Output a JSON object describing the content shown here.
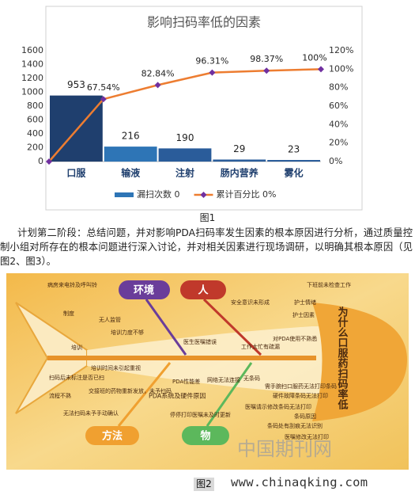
{
  "chart_data": {
    "type": "bar",
    "title": "影响扫码率低的因素",
    "categories": [
      "口服",
      "输液",
      "注射",
      "肠内营养",
      "雾化"
    ],
    "series": [
      {
        "name": "漏扫次数 0",
        "type": "bar",
        "color": "#2e75b6",
        "colors": [
          "#1f3f6e",
          "#2e75b6",
          "#2a5c9a",
          "#2a5c9a",
          "#2a5c9a"
        ],
        "values": [
          953,
          216,
          190,
          29,
          23
        ]
      },
      {
        "name": "累计百分比 0%",
        "type": "line",
        "axis": "y2",
        "color": "#ed7d31",
        "marker_color": "#7030a0",
        "values": [
          67.54,
          82.84,
          96.31,
          98.37,
          100
        ],
        "value_labels": [
          "67.54%",
          "82.84%",
          "96.31%",
          "98.37%",
          "100%"
        ]
      }
    ],
    "ylim": [
      0,
      1600
    ],
    "yticks": [
      0,
      200,
      400,
      600,
      800,
      1000,
      1200,
      1400,
      1600
    ],
    "y2lim": [
      0,
      120
    ],
    "y2ticks": [
      {
        "value": 0,
        "label": "0%"
      },
      {
        "value": 20,
        "label": "20%"
      },
      {
        "value": 40,
        "label": "40%"
      },
      {
        "value": 60,
        "label": "60%"
      },
      {
        "value": 80,
        "label": "80%"
      },
      {
        "value": 100,
        "label": "100%"
      },
      {
        "value": 120,
        "label": "120%"
      }
    ],
    "grid": false,
    "legend": "bottom"
  },
  "figure1_caption": "图1",
  "paragraph": "计划第二阶段：总结问题，并对影响PDA扫码率发生因素的根本原因进行分析，通过质量控制小组对所存在的根本问题进行深入讨论，并对相关因素进行现场调研，以明确其根本原因（见图2、图3）。",
  "figure2": {
    "head": "为什么口服药扫码率低",
    "categories": [
      "环境",
      "人",
      "方法",
      "物"
    ],
    "causes": [
      "病房来电铃及呼叫铃",
      "制度",
      "无人监管",
      "培训力度不够",
      "培训",
      "培训时间未引起重视",
      "安全意识未形成",
      "下班前未检查工作",
      "护士情绪",
      "护士因素",
      "医生医嘱错误",
      "工作太忙有疏漏",
      "对PDA使用不熟悉",
      "扫码后未标注是否已扫",
      "交接班的药物重新发放，未予扫码",
      "流程不熟",
      "无法扫码未予手动确认",
      "PDA性能差",
      "网络无法连接",
      "无条码",
      "PDA系统及硬件原因",
      "停停打印医嘱未及时更新",
      "需手腕扫口服药无法打印条码",
      "硬件故障条码无法打印",
      "医嘱请示修改条码无法打印",
      "条码原因",
      "条码处有刮痕无法识别",
      "医嘱修改无法打印"
    ],
    "watermark": "中国期刊网"
  },
  "figure2_caption": "图2",
  "site": "www.chinaqking.com"
}
